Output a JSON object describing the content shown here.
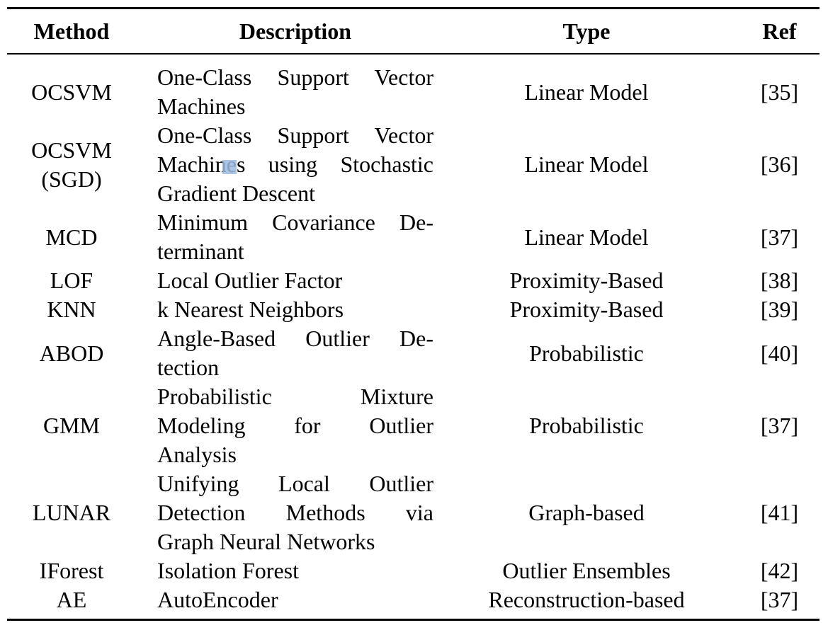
{
  "table": {
    "headers": {
      "method": "Method",
      "description": "Description",
      "type": "Type",
      "ref": "Ref"
    },
    "rows": [
      {
        "method": [
          "OCSVM"
        ],
        "description": [
          "One-Class Support Vector",
          "Machines"
        ],
        "type": "Linear Model",
        "ref": "[35]"
      },
      {
        "method": [
          "OCSVM",
          "(SGD)"
        ],
        "description": [
          "One-Class Support Vector",
          "Machines using Stochastic",
          "Gradient Descent"
        ],
        "type": "Linear Model",
        "ref": "[36]"
      },
      {
        "method": [
          "MCD"
        ],
        "description": [
          "Minimum Covariance De-",
          "terminant"
        ],
        "type": "Linear Model",
        "ref": "[37]"
      },
      {
        "method": [
          "LOF"
        ],
        "description": [
          "Local Outlier Factor"
        ],
        "type": "Proximity-Based",
        "ref": "[38]"
      },
      {
        "method": [
          "KNN"
        ],
        "description": [
          "k Nearest Neighbors"
        ],
        "type": "Proximity-Based",
        "ref": "[39]"
      },
      {
        "method": [
          "ABOD"
        ],
        "description": [
          "Angle-Based Outlier De-",
          "tection"
        ],
        "type": "Probabilistic",
        "ref": "[40]"
      },
      {
        "method": [
          "GMM"
        ],
        "description": [
          "Probabilistic Mixture",
          "Modeling for Outlier",
          "Analysis"
        ],
        "type": "Probabilistic",
        "ref": "[37]"
      },
      {
        "method": [
          "LUNAR"
        ],
        "description": [
          "Unifying Local Outlier",
          "Detection Methods via",
          "Graph Neural Networks"
        ],
        "type": "Graph-based",
        "ref": "[41]"
      },
      {
        "method": [
          "IForest"
        ],
        "description": [
          "Isolation Forest"
        ],
        "type": "Outlier Ensembles",
        "ref": "[42]"
      },
      {
        "method": [
          "AE"
        ],
        "description": [
          "AutoEncoder"
        ],
        "type": "Reconstruction-based",
        "ref": "[37]"
      }
    ]
  },
  "colors": {
    "text": "#000000",
    "background": "#ffffff",
    "selection_highlight": "#9dbbe0"
  }
}
